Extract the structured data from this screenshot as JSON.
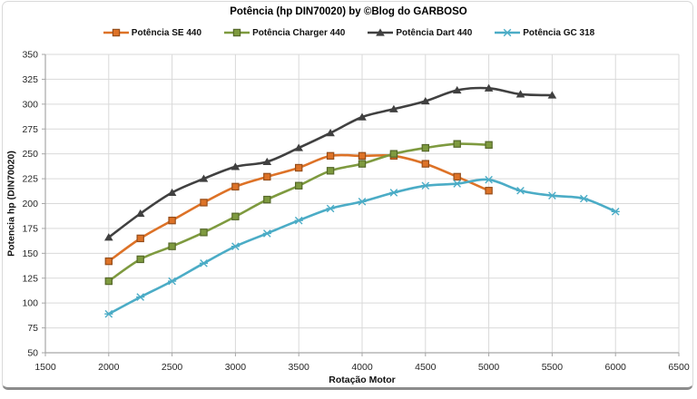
{
  "chart_data": {
    "type": "line",
    "title": "Potência (hp DIN70020) by ©Blog do GARBOSO",
    "xlabel": "Rotação Motor",
    "ylabel": "Potencia hp (DIN70020)",
    "xlim": [
      1500,
      6500
    ],
    "ylim": [
      50,
      350
    ],
    "grid": true,
    "legend_position": "top",
    "x_ticks": [
      1500,
      2000,
      2500,
      3000,
      3500,
      4000,
      4500,
      5000,
      5500,
      6000,
      6500
    ],
    "y_ticks": [
      50,
      75,
      100,
      125,
      150,
      175,
      200,
      225,
      250,
      275,
      300,
      325,
      350
    ],
    "x": [
      2000,
      2250,
      2500,
      2750,
      3000,
      3250,
      3500,
      3750,
      4000,
      4250,
      4500,
      4750,
      5000,
      5250,
      5500,
      5750,
      6000
    ],
    "series": [
      {
        "name": "Potência SE 440",
        "color": "#DD7227",
        "marker": "square",
        "values": [
          142,
          165,
          183,
          201,
          217,
          227,
          236,
          248,
          248,
          248,
          240,
          227,
          213,
          null,
          null,
          null,
          null
        ]
      },
      {
        "name": "Potência Charger 440",
        "color": "#7E9A3F",
        "marker": "square",
        "values": [
          122,
          144,
          157,
          171,
          187,
          204,
          218,
          233,
          240,
          250,
          256,
          260,
          259,
          null,
          null,
          null,
          null
        ]
      },
      {
        "name": "Potência Dart 440",
        "color": "#404040",
        "marker": "triangle",
        "values": [
          166,
          190,
          211,
          225,
          237,
          242,
          256,
          271,
          287,
          295,
          303,
          314,
          316,
          310,
          309,
          null,
          null
        ]
      },
      {
        "name": "Potência GC 318",
        "color": "#4BACC6",
        "marker": "star",
        "values": [
          89,
          106,
          122,
          140,
          157,
          170,
          183,
          195,
          202,
          211,
          218,
          220,
          224,
          213,
          208,
          205,
          192
        ]
      }
    ],
    "colors": {
      "grid": "#D9D9D9",
      "axis": "#A6A6A6",
      "tick_text": "#262626",
      "background": "#FFFFFF",
      "frame_border": "#D9D9D9",
      "frame_shadow": "#8C8C8C"
    }
  }
}
